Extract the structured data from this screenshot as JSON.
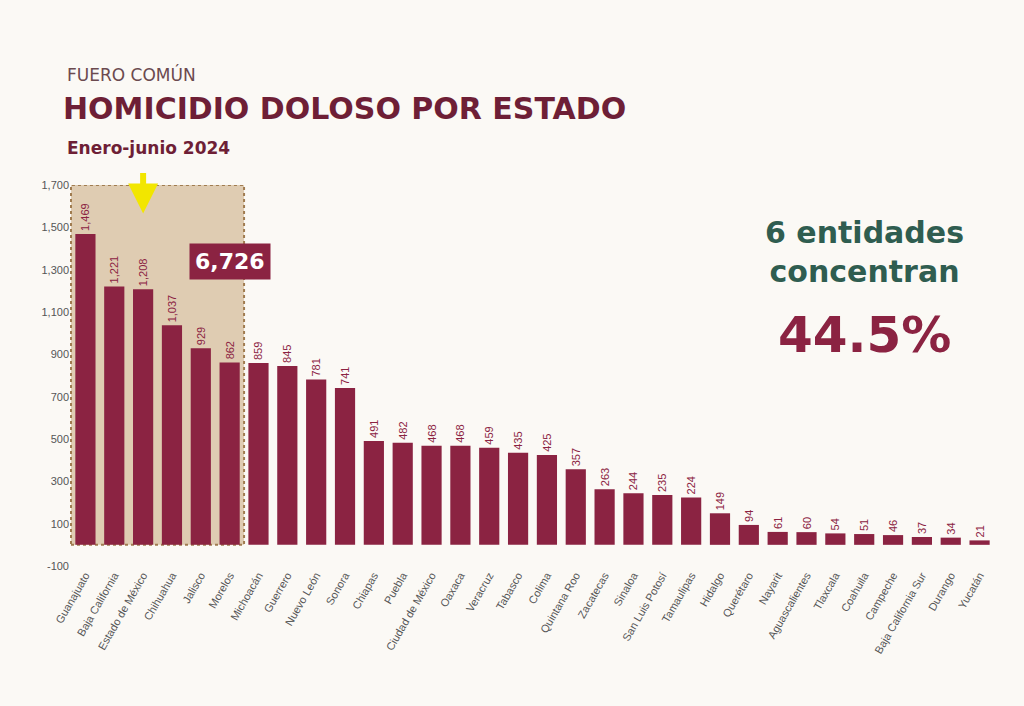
{
  "chart_data": {
    "type": "bar",
    "title": "HOMICIDIO DOLOSO POR ESTADO",
    "subtitle": "Enero-junio 2024",
    "annotations": [
      "FUERO COMÚN",
      "6,726",
      "6 entidades concentran",
      "44.5%"
    ],
    "categories": [
      "Guanajuato",
      "Baja California",
      "Estado de México",
      "Chihuahua",
      "Jalisco",
      "Morelos",
      "Michoacán",
      "Guerrero",
      "Nuevo León",
      "Sonora",
      "Chiapas",
      "Puebla",
      "Ciudad de México",
      "Oaxaca",
      "Veracruz",
      "Tabasco",
      "Colima",
      "Quintana Roo",
      "Zacatecas",
      "Sinaloa",
      "San Luis Potosí",
      "Tamaulipas",
      "Hidalgo",
      "Querétaro",
      "Nayarit",
      "Aguascalientes",
      "Tlaxcala",
      "Coahuila",
      "Campeche",
      "Baja California Sur",
      "Durango",
      "Yucatán"
    ],
    "values": [
      1469,
      1221,
      1208,
      1037,
      929,
      862,
      859,
      845,
      781,
      741,
      491,
      482,
      468,
      468,
      459,
      435,
      425,
      357,
      263,
      244,
      235,
      224,
      149,
      94,
      61,
      60,
      54,
      51,
      46,
      37,
      34,
      21
    ],
    "value_labels": [
      "1,469",
      "1,221",
      "1,208",
      "1,037",
      "929",
      "862",
      "859",
      "845",
      "781",
      "741",
      "491",
      "482",
      "468",
      "468",
      "459",
      "435",
      "425",
      "357",
      "263",
      "244",
      "235",
      "224",
      "149",
      "94",
      "61",
      "60",
      "54",
      "51",
      "46",
      "37",
      "34",
      "21"
    ],
    "color": "#8b2342",
    "ylim": [
      -100,
      1700
    ],
    "yticks": [
      -100,
      100,
      300,
      500,
      700,
      900,
      {
        "value": 1100,
        "label": "1,100"
      },
      {
        "value": 1300,
        "label": "1,300"
      },
      {
        "value": 1500,
        "label": "1,500"
      },
      {
        "value": 1700,
        "label": "1,700"
      }
    ],
    "grid": false,
    "data_labels": true
  }
}
